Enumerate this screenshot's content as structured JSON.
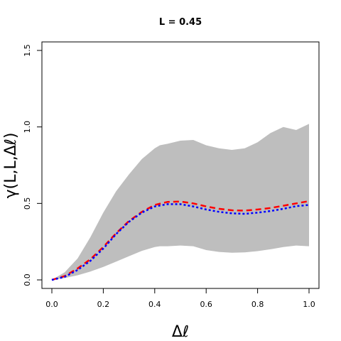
{
  "chart_data": {
    "type": "line",
    "title": "L = 0.45",
    "xlabel": "Δℓ",
    "ylabel": "γ(L,L,Δℓ)",
    "xlim": [
      0.0,
      1.0
    ],
    "ylim": [
      0.0,
      1.5
    ],
    "x_ticks": [
      "0.0",
      "0.2",
      "0.4",
      "0.6",
      "0.8",
      "1.0"
    ],
    "y_ticks": [
      "0.0",
      "0.5",
      "1.0",
      "1.5"
    ],
    "grid": false,
    "band": {
      "color": "#bebebe",
      "x": [
        0.0,
        0.05,
        0.1,
        0.15,
        0.2,
        0.25,
        0.3,
        0.35,
        0.4,
        0.42,
        0.45,
        0.5,
        0.55,
        0.6,
        0.65,
        0.7,
        0.75,
        0.8,
        0.85,
        0.9,
        0.95,
        1.0
      ],
      "lower": [
        0.0,
        0.012,
        0.03,
        0.055,
        0.085,
        0.12,
        0.155,
        0.19,
        0.215,
        0.22,
        0.22,
        0.225,
        0.22,
        0.195,
        0.183,
        0.178,
        0.18,
        0.188,
        0.2,
        0.215,
        0.225,
        0.22
      ],
      "upper": [
        0.0,
        0.05,
        0.14,
        0.28,
        0.44,
        0.58,
        0.69,
        0.79,
        0.86,
        0.88,
        0.89,
        0.91,
        0.915,
        0.88,
        0.86,
        0.85,
        0.86,
        0.9,
        0.96,
        1.0,
        0.98,
        1.02
      ]
    },
    "series": [
      {
        "color": "#ff0000",
        "dash": "dashed",
        "x": [
          0.0,
          0.05,
          0.1,
          0.15,
          0.2,
          0.25,
          0.3,
          0.35,
          0.4,
          0.45,
          0.5,
          0.55,
          0.6,
          0.65,
          0.7,
          0.75,
          0.8,
          0.85,
          0.9,
          0.95,
          1.0
        ],
        "y": [
          0.0,
          0.025,
          0.075,
          0.135,
          0.215,
          0.305,
          0.385,
          0.445,
          0.49,
          0.51,
          0.512,
          0.5,
          0.48,
          0.465,
          0.455,
          0.453,
          0.46,
          0.47,
          0.485,
          0.5,
          0.515
        ]
      },
      {
        "color": "#0000ff",
        "dash": "dotted",
        "x": [
          0.0,
          0.05,
          0.1,
          0.15,
          0.2,
          0.25,
          0.3,
          0.35,
          0.4,
          0.45,
          0.5,
          0.55,
          0.6,
          0.65,
          0.7,
          0.75,
          0.8,
          0.85,
          0.9,
          0.95,
          1.0
        ],
        "y": [
          0.0,
          0.02,
          0.065,
          0.125,
          0.205,
          0.3,
          0.38,
          0.44,
          0.48,
          0.495,
          0.495,
          0.48,
          0.46,
          0.445,
          0.435,
          0.432,
          0.44,
          0.45,
          0.465,
          0.482,
          0.49
        ]
      }
    ]
  }
}
